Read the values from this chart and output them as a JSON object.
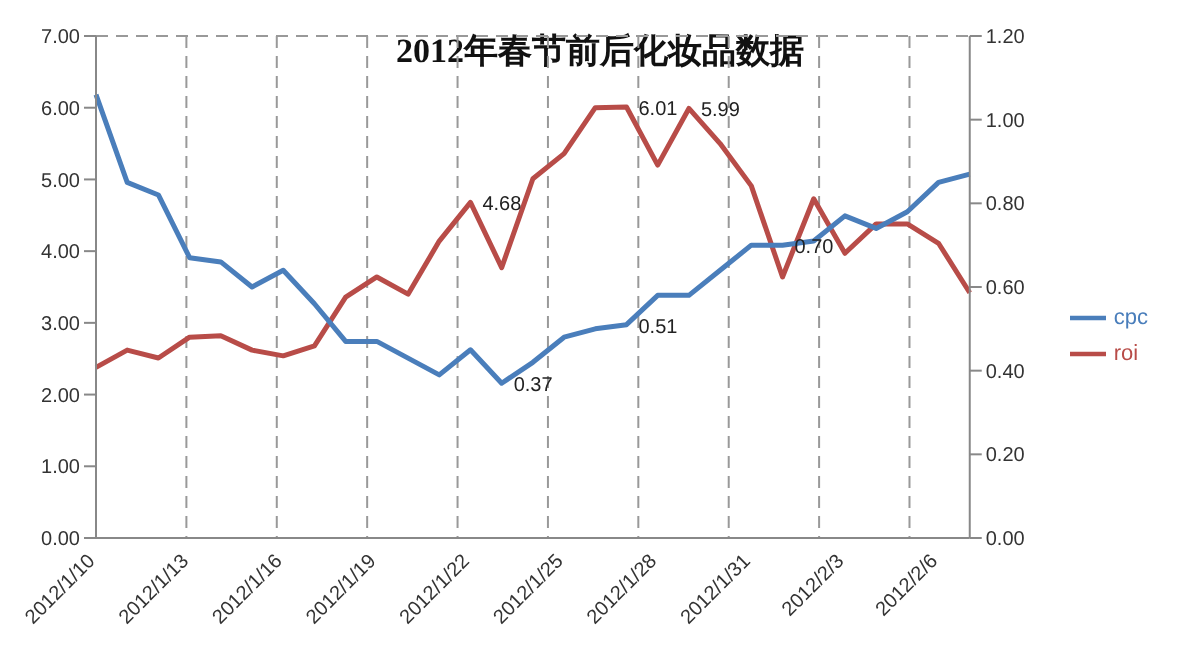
{
  "chart_data": {
    "type": "line",
    "title": "2012年春节前后化妆品数据",
    "categories": [
      "2012/1/10",
      null,
      null,
      "2012/1/13",
      null,
      null,
      "2012/1/16",
      null,
      null,
      "2012/1/19",
      null,
      null,
      "2012/1/22",
      null,
      null,
      "2012/1/25",
      null,
      null,
      "2012/1/28",
      null,
      null,
      "2012/1/31",
      null,
      null,
      "2012/2/3",
      null,
      null,
      "2012/2/6",
      null
    ],
    "series": [
      {
        "name": "roi",
        "color": "#b84c48",
        "values": [
          2.38,
          2.62,
          2.51,
          2.8,
          2.82,
          2.62,
          2.54,
          2.68,
          3.36,
          3.64,
          3.4,
          4.14,
          4.68,
          3.77,
          5.01,
          5.36,
          6.0,
          6.01,
          5.2,
          5.99,
          5.5,
          4.91,
          3.64,
          4.73,
          3.97,
          4.38,
          4.38,
          4.11,
          3.42
        ],
        "value_labels": [
          null,
          null,
          null,
          null,
          null,
          null,
          null,
          null,
          null,
          null,
          null,
          null,
          "4.68",
          null,
          null,
          null,
          null,
          "6.01",
          null,
          "5.99",
          null,
          null,
          null,
          null,
          null,
          null,
          null,
          null,
          null
        ]
      },
      {
        "name": "cpc",
        "color": "#4a7ebb",
        "axis": "y2",
        "values": [
          1.06,
          0.85,
          0.82,
          0.67,
          0.66,
          0.6,
          0.64,
          0.56,
          0.47,
          0.47,
          0.43,
          0.39,
          0.45,
          0.37,
          0.42,
          0.48,
          0.5,
          0.51,
          0.58,
          0.58,
          0.64,
          0.7,
          0.7,
          0.71,
          0.77,
          0.74,
          0.78,
          0.85,
          0.87
        ],
        "value_labels": [
          null,
          null,
          null,
          null,
          null,
          null,
          null,
          null,
          null,
          null,
          null,
          null,
          null,
          "0.37",
          null,
          null,
          null,
          "0.51",
          null,
          null,
          null,
          null,
          "0.70",
          null,
          null,
          null,
          null,
          null,
          null
        ]
      }
    ],
    "ylim": [
      0,
      7
    ],
    "yticks": [
      {
        "value": 0,
        "label": "0.00"
      },
      {
        "value": 1,
        "label": "1.00"
      },
      {
        "value": 2,
        "label": "2.00"
      },
      {
        "value": 3,
        "label": "3.00"
      },
      {
        "value": 4,
        "label": "4.00"
      },
      {
        "value": 5,
        "label": "5.00"
      },
      {
        "value": 6,
        "label": "6.00"
      },
      {
        "value": 7,
        "label": "7.00"
      }
    ],
    "y2lim": [
      0,
      1.2
    ],
    "y2ticks": [
      {
        "value": 0,
        "label": "0.00"
      },
      {
        "value": 0.2,
        "label": "0.20"
      },
      {
        "value": 0.4,
        "label": "0.40"
      },
      {
        "value": 0.6,
        "label": "0.60"
      },
      {
        "value": 0.8,
        "label": "0.80"
      },
      {
        "value": 1,
        "label": "1.00"
      },
      {
        "value": 1.2,
        "label": "1.20"
      }
    ],
    "grid": true,
    "legend": "right",
    "marker": "none",
    "line_style": "solid"
  }
}
